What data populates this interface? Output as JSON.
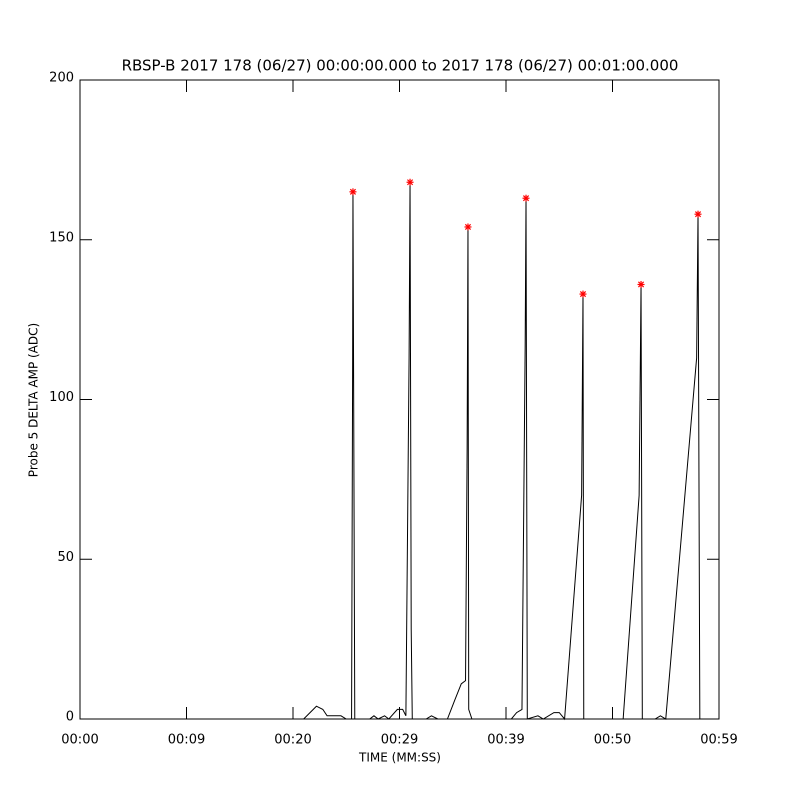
{
  "chart_data": {
    "type": "line",
    "title": "RBSP-B 2017 178 (06/27) 00:00:00.000 to 2017 178 (06/27) 00:01:00.000",
    "xlabel": "TIME (MM:SS)",
    "ylabel": "Probe 5 DELTA AMP (ADC)",
    "xlim": [
      0,
      60
    ],
    "xticks": [
      {
        "value": 0,
        "label": "00:00"
      },
      {
        "value": 10,
        "label": "00:09"
      },
      {
        "value": 20,
        "label": "00:20"
      },
      {
        "value": 30,
        "label": "00:29"
      },
      {
        "value": 40,
        "label": "00:39"
      },
      {
        "value": 50,
        "label": "00:50"
      },
      {
        "value": 60,
        "label": "00:59"
      }
    ],
    "ylim": [
      0,
      200
    ],
    "yticks": [
      0,
      50,
      100,
      150,
      200
    ],
    "series": [
      {
        "color": "#000000",
        "marker": "none",
        "x": [
          0,
          21.0,
          21.6,
          22.2,
          22.8,
          23.2,
          24.5,
          25.0,
          25.5,
          25.6,
          25.63,
          25.7,
          25.8,
          27.2,
          27.6,
          28.0,
          28.6,
          29.0,
          29.8,
          30.3,
          30.6,
          30.9,
          30.99,
          31.1,
          31.2,
          32.5,
          33.0,
          33.6,
          34.5,
          35.2,
          35.8,
          36.2,
          36.35,
          36.43,
          36.5,
          36.8,
          40.5,
          41.0,
          41.5,
          41.8,
          41.88,
          42.0,
          43.0,
          43.5,
          44.5,
          45.0,
          45.5,
          47.1,
          47.23,
          47.3,
          50.0,
          51.0,
          52.5,
          52.68,
          52.8,
          54.0,
          54.5,
          55.0,
          57.9,
          58.03,
          58.2
        ],
        "values": [
          0,
          0,
          2,
          4,
          3,
          1,
          1,
          0,
          0,
          112,
          165,
          98,
          0,
          0,
          1,
          0,
          1,
          0,
          3,
          3,
          1,
          113,
          168,
          28,
          0,
          0,
          1,
          0,
          0,
          6,
          11,
          12,
          85,
          154,
          3,
          0,
          0,
          2,
          3,
          117,
          163,
          0,
          1,
          0,
          2,
          2,
          0,
          70,
          133,
          0,
          0,
          0,
          70,
          136,
          0,
          0,
          1,
          0,
          113,
          158,
          0
        ]
      },
      {
        "color": "#ff0000",
        "marker": "star",
        "x": [
          25.63,
          30.99,
          36.43,
          41.88,
          47.23,
          52.68,
          58.03
        ],
        "values": [
          165,
          168,
          154,
          163,
          133,
          136,
          158
        ]
      }
    ]
  }
}
